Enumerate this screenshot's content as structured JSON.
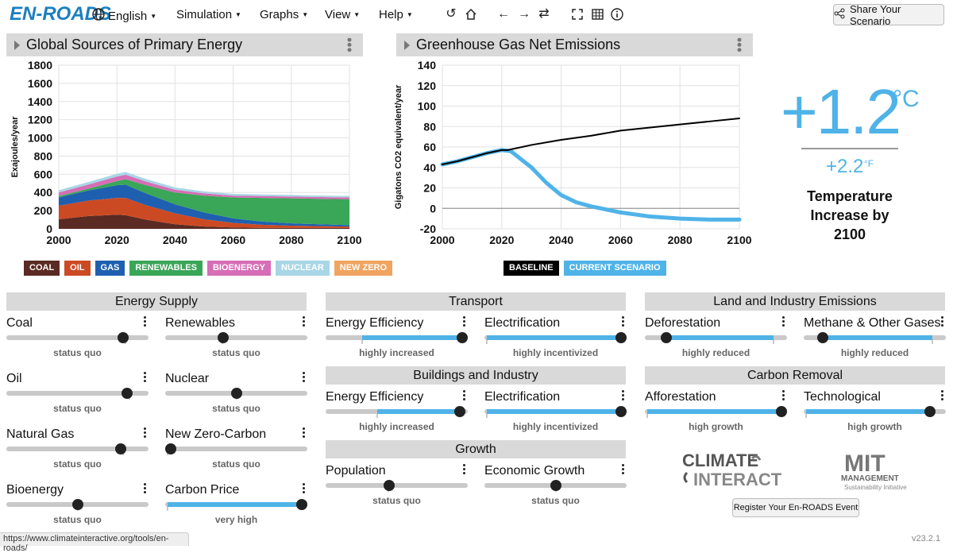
{
  "app": {
    "logo": "EN-ROADS",
    "version": "v23.2.1",
    "status_url": "https://www.climateinteractive.org/tools/en-roads/"
  },
  "menu": {
    "language": "English",
    "simulation": "Simulation",
    "graphs": "Graphs",
    "view": "View",
    "help": "Help"
  },
  "toolbar": {
    "share": "Share Your Scenario"
  },
  "colors": {
    "coal": "#5a2a23",
    "oil": "#cc4a23",
    "gas": "#1f5fb0",
    "renewables": "#3aa658",
    "bioenergy": "#d66db6",
    "nuclear": "#a8d6e6",
    "new_zero": "#f0a460",
    "baseline": "#000000",
    "current": "#4fb3e8"
  },
  "graph1": {
    "title": "Global Sources of Primary Energy",
    "legend": [
      "COAL",
      "OIL",
      "GAS",
      "RENEWABLES",
      "BIOENERGY",
      "NUCLEAR",
      "NEW ZERO"
    ],
    "chart_data": {
      "type": "area",
      "ylabel": "Exajoules/year",
      "xlim": [
        2000,
        2100
      ],
      "ylim": [
        0,
        1800
      ],
      "yticks": [
        0,
        200,
        400,
        600,
        800,
        1000,
        1200,
        1400,
        1600,
        1800
      ],
      "xticks": [
        2000,
        2020,
        2040,
        2060,
        2080,
        2100
      ],
      "x": [
        2000,
        2010,
        2020,
        2023,
        2030,
        2040,
        2050,
        2060,
        2070,
        2080,
        2090,
        2100
      ],
      "series": [
        {
          "name": "COAL",
          "values": [
            105,
            140,
            155,
            150,
            100,
            50,
            25,
            15,
            10,
            10,
            10,
            10
          ]
        },
        {
          "name": "OIL",
          "values": [
            150,
            170,
            185,
            190,
            160,
            120,
            80,
            50,
            35,
            25,
            20,
            15
          ]
        },
        {
          "name": "GAS",
          "values": [
            90,
            110,
            140,
            145,
            130,
            100,
            75,
            50,
            35,
            25,
            20,
            15
          ]
        },
        {
          "name": "RENEWABLES",
          "values": [
            15,
            20,
            45,
            60,
            90,
            130,
            185,
            230,
            260,
            275,
            280,
            285
          ]
        },
        {
          "name": "BIOENERGY",
          "values": [
            40,
            45,
            50,
            50,
            40,
            30,
            25,
            20,
            20,
            20,
            20,
            20
          ]
        },
        {
          "name": "NUCLEAR",
          "values": [
            25,
            28,
            30,
            30,
            28,
            25,
            22,
            20,
            18,
            17,
            16,
            16
          ]
        },
        {
          "name": "NEW ZERO",
          "values": [
            0,
            0,
            0,
            0,
            0,
            0,
            0,
            0,
            0,
            0,
            0,
            0
          ]
        }
      ]
    }
  },
  "graph2": {
    "title": "Greenhouse Gas Net Emissions",
    "legend": [
      "BASELINE",
      "CURRENT SCENARIO"
    ],
    "chart_data": {
      "type": "line",
      "ylabel": "Gigatons CO2 equivalent/year",
      "xlim": [
        2000,
        2100
      ],
      "ylim": [
        -20,
        140
      ],
      "yticks": [
        -20,
        0,
        20,
        40,
        60,
        80,
        100,
        120,
        140
      ],
      "xticks": [
        2000,
        2020,
        2040,
        2060,
        2080,
        2100
      ],
      "series": [
        {
          "name": "BASELINE",
          "x": [
            2000,
            2005,
            2010,
            2015,
            2020,
            2022,
            2030,
            2040,
            2050,
            2060,
            2070,
            2080,
            2090,
            2100
          ],
          "values": [
            43,
            46,
            50,
            54,
            57,
            57,
            62,
            67,
            71,
            76,
            79,
            82,
            85,
            88
          ]
        },
        {
          "name": "CURRENT SCENARIO",
          "x": [
            2000,
            2005,
            2010,
            2015,
            2020,
            2023,
            2030,
            2035,
            2040,
            2045,
            2050,
            2060,
            2070,
            2080,
            2090,
            2100
          ],
          "values": [
            43,
            46,
            50,
            54,
            57,
            56,
            40,
            25,
            13,
            6,
            2,
            -4,
            -8,
            -10,
            -11,
            -11
          ]
        }
      ]
    }
  },
  "temperature": {
    "celsius": "+1.2",
    "c_unit": "°C",
    "fahrenheit": "+2.2",
    "f_unit": "°F",
    "label": "Temperature Increase by 2100"
  },
  "sections": {
    "energy_supply": "Energy Supply",
    "transport": "Transport",
    "buildings": "Buildings and Industry",
    "growth": "Growth",
    "land": "Land and Industry Emissions",
    "removal": "Carbon Removal"
  },
  "sliders": {
    "coal": {
      "name": "Coal",
      "status": "status quo",
      "value": 0.85
    },
    "renewables": {
      "name": "Renewables",
      "status": "status quo",
      "value": 0.4
    },
    "oil": {
      "name": "Oil",
      "status": "status quo",
      "value": 0.88
    },
    "nuclear": {
      "name": "Nuclear",
      "status": "status quo",
      "value": 0.5
    },
    "natural_gas": {
      "name": "Natural Gas",
      "status": "status quo",
      "value": 0.83
    },
    "new_zero": {
      "name": "New Zero-Carbon",
      "status": "status quo",
      "value": 0.0
    },
    "bioenergy": {
      "name": "Bioenergy",
      "status": "status quo",
      "value": 0.5
    },
    "carbon_price": {
      "name": "Carbon Price",
      "status": "very high",
      "value": 1.0
    },
    "transport_eff": {
      "name": "Energy Efficiency",
      "status": "highly increased",
      "value": 1.0
    },
    "transport_elec": {
      "name": "Electrification",
      "status": "highly incentivized",
      "value": 1.0
    },
    "build_eff": {
      "name": "Energy Efficiency",
      "status": "highly increased",
      "value": 0.98
    },
    "build_elec": {
      "name": "Electrification",
      "status": "highly incentivized",
      "value": 1.0
    },
    "population": {
      "name": "Population",
      "status": "status quo",
      "value": 0.44
    },
    "econ_growth": {
      "name": "Economic Growth",
      "status": "status quo",
      "value": 0.5
    },
    "deforestation": {
      "name": "Deforestation",
      "status": "highly reduced",
      "value": 0.12
    },
    "methane": {
      "name": "Methane & Other Gases",
      "status": "highly reduced",
      "value": 0.1
    },
    "afforestation": {
      "name": "Afforestation",
      "status": "high growth",
      "value": 1.0
    },
    "technological": {
      "name": "Technological",
      "status": "high growth",
      "value": 0.92
    }
  },
  "footer": {
    "register": "Register Your En-ROADS Event",
    "ci_logo_line1": "CLIMATE",
    "ci_logo_line2": "INTERACTIVE",
    "mit_logo_line1": "MIT",
    "mit_logo_line2": "MANAGEMENT",
    "mit_logo_line3": "Sustainability Initiative"
  }
}
